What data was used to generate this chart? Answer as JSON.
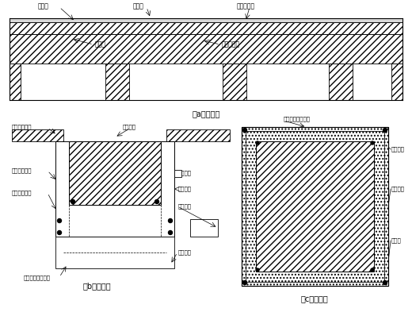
{
  "bg_color": "#ffffff",
  "line_color": "#000000",
  "fig_width": 5.2,
  "fig_height": 3.98,
  "labels": {
    "a_title": "（a）加固板",
    "b_title": "（b）加固梁",
    "c_title": "（c）加固柱",
    "gang_jin_wang": "钒筋网",
    "zeng_hou_ceng": "增厚层",
    "fu_wan_ju": "负弯矩钒筋",
    "jie_he_ceng": "结合层",
    "yuan_ban": "原混凝土板",
    "xin_ligan_top": "新加架立钒筋",
    "yuan_liang": "原梁截面",
    "xin_ligan_mid": "新加架立钒筋",
    "xin_ligan_bot": "新加架立钒筋",
    "xin_zong_b": "新加纵向受力钒筋",
    "xing_gang": "工型钒筋",
    "kai_kou": "开口钒筋",
    "fu_jia": "附加筐筋",
    "xin_zeng": "新增断面",
    "xin_zong_c": "新加纵向受力钒筋",
    "xin_gu": "新加筐筋",
    "xin_mian": "新加截面",
    "yuan_mian": "原截面"
  }
}
